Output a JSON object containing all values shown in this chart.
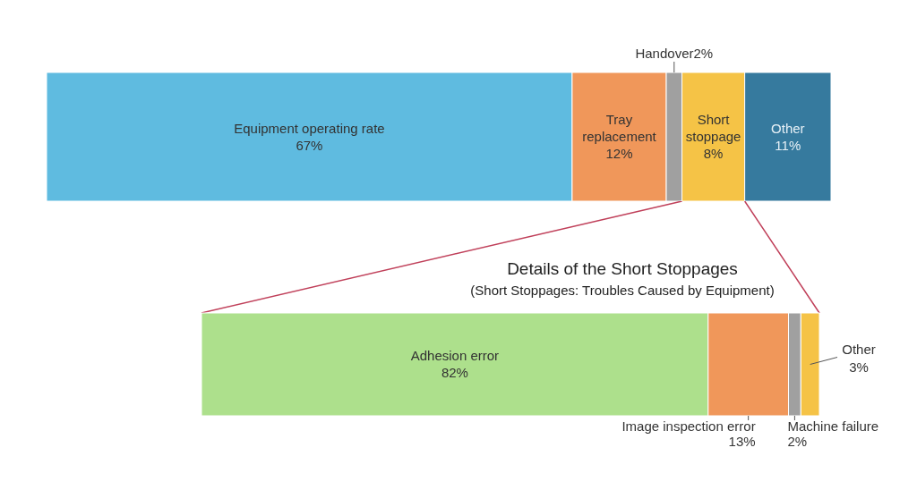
{
  "chart_data": [
    {
      "type": "bar",
      "orientation": "horizontal",
      "stacked": true,
      "categories": [
        null
      ],
      "series": [
        {
          "name": "Equipment operating rate",
          "color": "#5fbbe0",
          "values": [
            67
          ],
          "value_labels": [
            "67%"
          ]
        },
        {
          "name": "Tray replacement",
          "color": "#f0975a",
          "values": [
            12
          ],
          "value_labels": [
            "12%"
          ]
        },
        {
          "name": "Handover",
          "color": "#a0a0a0",
          "values": [
            2
          ],
          "value_labels": [
            "2%"
          ]
        },
        {
          "name": "Short stoppage",
          "color": "#f5c346",
          "values": [
            8
          ],
          "value_labels": [
            "8%"
          ]
        },
        {
          "name": "Other",
          "color": "#367a9e",
          "values": [
            11
          ],
          "value_labels": [
            "11%"
          ]
        }
      ]
    },
    {
      "type": "bar",
      "orientation": "horizontal",
      "stacked": true,
      "title": "Details of the Short Stoppages",
      "subtitle": "(Short Stoppages: Troubles Caused by Equipment)",
      "categories": [
        null
      ],
      "series": [
        {
          "name": "Adhesion error",
          "color": "#ade08c",
          "values": [
            82
          ],
          "value_labels": [
            "82%"
          ]
        },
        {
          "name": "Image inspection error",
          "color": "#f0975a",
          "values": [
            13
          ],
          "value_labels": [
            "13%"
          ]
        },
        {
          "name": "Machine failure",
          "color": "#a0a0a0",
          "values": [
            2
          ],
          "value_labels": [
            "2%"
          ]
        },
        {
          "name": "Other",
          "color": "#f5c346",
          "values": [
            3
          ],
          "value_labels": [
            "3%"
          ]
        }
      ]
    }
  ]
}
